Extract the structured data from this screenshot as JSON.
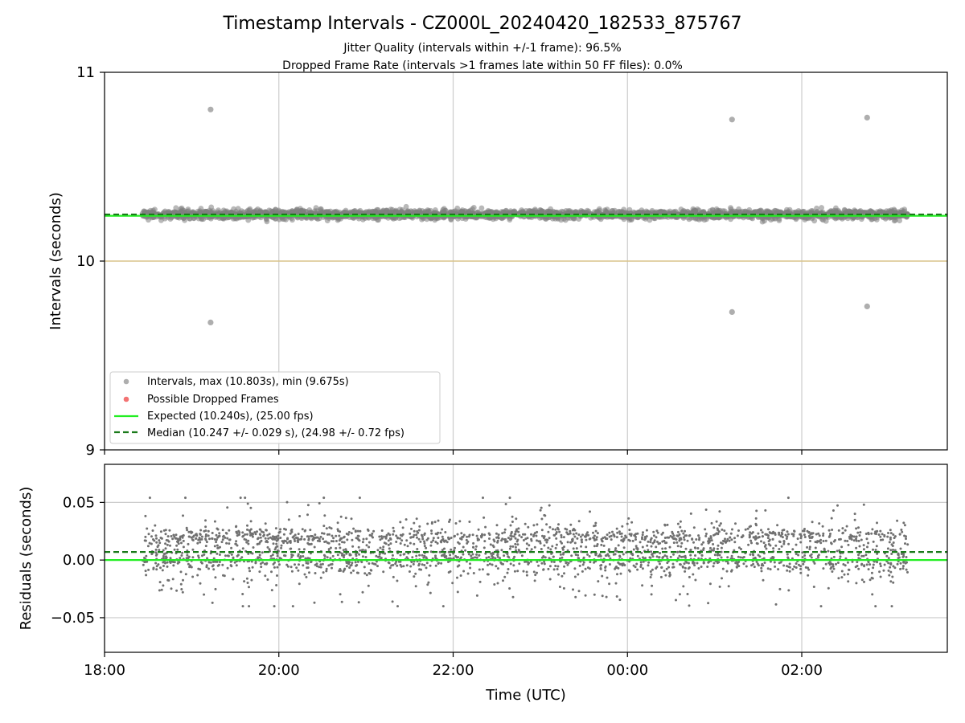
{
  "chart_data": [
    {
      "type": "scatter",
      "title": "Timestamp Intervals - CZ000L_20240420_182533_875767",
      "subtitle_lines": [
        "Jitter Quality (intervals within +/-1 frame): 96.5%",
        "Dropped Frame Rate (intervals >1 frames late within 50 FF files): 0.0%"
      ],
      "xlabel": "",
      "ylabel": "Intervals (seconds)",
      "x_range": [
        "18:00",
        "03:40"
      ],
      "x_range_hours": [
        18.0,
        27.67
      ],
      "ylim": [
        9,
        11
      ],
      "y_ticks": [
        "9",
        "10",
        "11"
      ],
      "y_tick_values": [
        9,
        10,
        11
      ],
      "grid": "vertical",
      "reference_line": 10.0,
      "reference_color": "#d9c48a",
      "legend_position": "lower-left",
      "series": [
        {
          "name": "Intervals, max (10.803s), min (9.675s)",
          "kind": "points",
          "color": "#808080",
          "x_start": "18:26",
          "x_end": "03:13",
          "band_center": 10.247,
          "band_spread": 0.029,
          "outliers": [
            {
              "x": "19:13",
              "y": 10.803
            },
            {
              "x": "19:13",
              "y": 9.675
            },
            {
              "x": "01:12",
              "y": 10.75
            },
            {
              "x": "01:12",
              "y": 9.73
            },
            {
              "x": "02:45",
              "y": 10.76
            },
            {
              "x": "02:45",
              "y": 9.76
            }
          ]
        },
        {
          "name": "Possible Dropped Frames",
          "kind": "points",
          "color": "#f05050",
          "points": []
        },
        {
          "name": "Expected (10.240s), (25.00 fps)",
          "kind": "hline",
          "value": 10.24,
          "color": "#22ee22"
        },
        {
          "name": "Median (10.247 +/- 0.029 s), (24.98 +/- 0.72 fps)",
          "kind": "dashed-hline",
          "value": 10.247,
          "color": "#1a7a1a"
        }
      ]
    },
    {
      "type": "scatter",
      "title": "",
      "xlabel": "Time (UTC)",
      "ylabel": "Residuals (seconds)",
      "x_ticks": [
        "18:00",
        "20:00",
        "22:00",
        "00:00",
        "02:00"
      ],
      "x_tick_hours": [
        18,
        20,
        22,
        24,
        26
      ],
      "y_ticks": [
        "0.05",
        "0.00",
        "−0.05"
      ],
      "y_tick_values": [
        0.05,
        0.0,
        -0.05
      ],
      "ylim": [
        -0.08,
        0.083
      ],
      "grid": "both",
      "series": [
        {
          "name": "",
          "kind": "points",
          "color": "#707070",
          "x_start": "18:26",
          "x_end": "03:13",
          "center": 0.007,
          "spread": 0.02
        },
        {
          "name": "",
          "kind": "hline",
          "value": 0.0,
          "color": "#22ee22"
        },
        {
          "name": "",
          "kind": "dashed-hline",
          "value": 0.007,
          "color": "#1a7a1a"
        }
      ]
    }
  ]
}
